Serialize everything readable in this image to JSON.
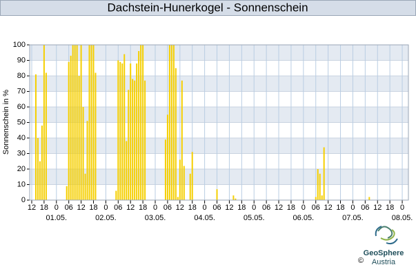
{
  "chart_data": {
    "type": "bar",
    "title": "Dachstein-Hunerkogel - Sonnenschein",
    "ylabel": "Sonnenschein in %",
    "x": [
      14,
      15,
      16,
      17,
      18,
      19,
      29,
      30,
      31,
      32,
      33,
      34,
      35,
      36,
      37,
      38,
      39,
      40,
      41,
      42,
      43,
      53,
      54,
      55,
      56,
      57,
      58,
      59,
      60,
      61,
      62,
      63,
      64,
      65,
      66,
      67,
      77,
      78,
      79,
      80,
      81,
      82,
      83,
      84,
      85,
      86,
      89,
      90,
      102,
      110,
      111,
      150,
      151,
      152,
      153,
      154,
      176
    ],
    "values": [
      81,
      40,
      25,
      48,
      100,
      82,
      9,
      89,
      93,
      100,
      100,
      100,
      80,
      100,
      60,
      17,
      51,
      100,
      100,
      100,
      82,
      6,
      90,
      89,
      88,
      94,
      38,
      71,
      88,
      78,
      77,
      88,
      96,
      100,
      100,
      77,
      39,
      55,
      100,
      100,
      100,
      85,
      2,
      26,
      77,
      22,
      17,
      31,
      7,
      3,
      1,
      2,
      20,
      17,
      3,
      34,
      2
    ],
    "color": "#f5cf00",
    "xlim": [
      11,
      195
    ],
    "ylim": [
      0,
      100
    ],
    "yticks": [
      0,
      10,
      20,
      30,
      40,
      50,
      60,
      70,
      80,
      90,
      100
    ],
    "xticks": [
      {
        "value": 12,
        "label": "12"
      },
      {
        "value": 18,
        "label": "18"
      },
      {
        "value": 24,
        "label": "0"
      },
      {
        "value": 30,
        "label": "06"
      },
      {
        "value": 36,
        "label": "12"
      },
      {
        "value": 42,
        "label": "18"
      },
      {
        "value": 48,
        "label": "0"
      },
      {
        "value": 54,
        "label": "06"
      },
      {
        "value": 60,
        "label": "12"
      },
      {
        "value": 66,
        "label": "18"
      },
      {
        "value": 72,
        "label": "0"
      },
      {
        "value": 78,
        "label": "06"
      },
      {
        "value": 84,
        "label": "12"
      },
      {
        "value": 90,
        "label": "18"
      },
      {
        "value": 96,
        "label": "0"
      },
      {
        "value": 102,
        "label": "06"
      },
      {
        "value": 108,
        "label": "12"
      },
      {
        "value": 114,
        "label": "18"
      },
      {
        "value": 120,
        "label": "0"
      },
      {
        "value": 126,
        "label": "06"
      },
      {
        "value": 132,
        "label": "12"
      },
      {
        "value": 138,
        "label": "18"
      },
      {
        "value": 144,
        "label": "0"
      },
      {
        "value": 150,
        "label": "06"
      },
      {
        "value": 156,
        "label": "12"
      },
      {
        "value": 162,
        "label": "18"
      },
      {
        "value": 168,
        "label": "0"
      },
      {
        "value": 174,
        "label": "06"
      },
      {
        "value": 180,
        "label": "12"
      },
      {
        "value": 186,
        "label": "18"
      },
      {
        "value": 192,
        "label": "0"
      }
    ],
    "date_labels": [
      {
        "value": 24,
        "label": "01.05."
      },
      {
        "value": 48,
        "label": "02.05."
      },
      {
        "value": 72,
        "label": "03.05."
      },
      {
        "value": 96,
        "label": "04.05."
      },
      {
        "value": 120,
        "label": "05.05."
      },
      {
        "value": 144,
        "label": "06.05."
      },
      {
        "value": 168,
        "label": "07.05."
      },
      {
        "value": 192,
        "label": "08.05."
      }
    ],
    "grid": true
  },
  "footer": {
    "brand": "GeoSphere",
    "sub": "Austria",
    "copyright": "©"
  }
}
